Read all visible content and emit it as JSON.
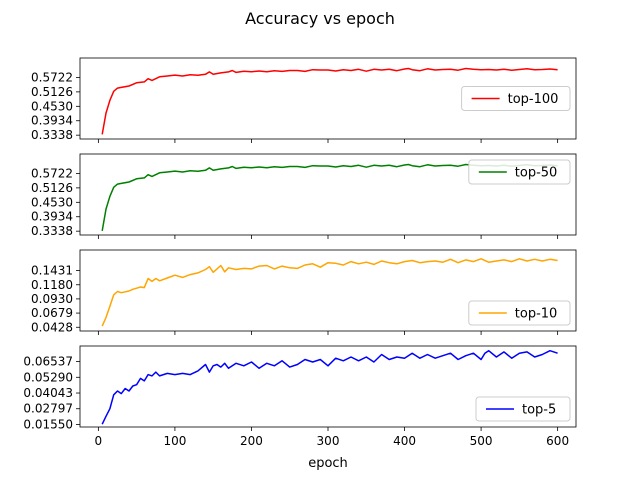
{
  "figure": {
    "title": "Accuracy vs epoch",
    "xlabel": "epoch"
  },
  "chart_data": [
    {
      "type": "line",
      "legend": "top-100",
      "legend_loc": "center-right",
      "color": "#ff0000",
      "yticks": [
        "0.3338",
        "0.3934",
        "0.4530",
        "0.5126",
        "0.5722"
      ],
      "ylim": [
        0.318,
        0.6525
      ],
      "xlim": [
        -24,
        624
      ],
      "xticks": [
        0,
        100,
        200,
        300,
        400,
        500,
        600
      ],
      "x": [
        5,
        10,
        15,
        20,
        25,
        30,
        40,
        50,
        60,
        65,
        70,
        80,
        90,
        100,
        110,
        120,
        130,
        140,
        145,
        150,
        160,
        170,
        175,
        180,
        190,
        200,
        210,
        220,
        230,
        240,
        250,
        260,
        270,
        280,
        290,
        300,
        310,
        320,
        330,
        340,
        350,
        360,
        370,
        380,
        390,
        400,
        405,
        410,
        420,
        430,
        440,
        450,
        460,
        470,
        480,
        490,
        500,
        510,
        520,
        530,
        540,
        550,
        560,
        570,
        580,
        590,
        600
      ],
      "y": [
        0.337,
        0.425,
        0.478,
        0.515,
        0.528,
        0.531,
        0.537,
        0.55,
        0.554,
        0.567,
        0.56,
        0.575,
        0.578,
        0.582,
        0.578,
        0.583,
        0.581,
        0.585,
        0.595,
        0.585,
        0.591,
        0.595,
        0.601,
        0.593,
        0.598,
        0.596,
        0.599,
        0.596,
        0.6,
        0.597,
        0.601,
        0.601,
        0.597,
        0.604,
        0.603,
        0.603,
        0.599,
        0.604,
        0.601,
        0.606,
        0.598,
        0.606,
        0.603,
        0.606,
        0.6,
        0.607,
        0.609,
        0.604,
        0.6,
        0.608,
        0.603,
        0.605,
        0.606,
        0.602,
        0.609,
        0.606,
        0.604,
        0.605,
        0.603,
        0.606,
        0.602,
        0.605,
        0.608,
        0.604,
        0.605,
        0.607,
        0.604
      ]
    },
    {
      "type": "line",
      "legend": "top-50",
      "legend_loc": "upper-right",
      "color": "#008000",
      "yticks": [
        "0.3338",
        "0.3934",
        "0.4530",
        "0.5126",
        "0.5722"
      ],
      "ylim": [
        0.318,
        0.6525
      ],
      "xlim": [
        -24,
        624
      ],
      "xticks": [
        0,
        100,
        200,
        300,
        400,
        500,
        600
      ],
      "x": [
        5,
        10,
        15,
        20,
        25,
        30,
        40,
        50,
        60,
        65,
        70,
        80,
        90,
        100,
        110,
        120,
        130,
        140,
        145,
        150,
        160,
        170,
        175,
        180,
        190,
        200,
        210,
        220,
        230,
        240,
        250,
        260,
        270,
        280,
        290,
        300,
        310,
        320,
        330,
        340,
        350,
        360,
        370,
        380,
        390,
        400,
        405,
        410,
        420,
        430,
        440,
        450,
        460,
        470,
        480,
        490,
        500,
        510,
        520,
        530,
        540,
        550,
        560,
        570,
        580,
        590,
        600
      ],
      "y": [
        0.335,
        0.425,
        0.478,
        0.515,
        0.528,
        0.531,
        0.537,
        0.55,
        0.554,
        0.567,
        0.56,
        0.575,
        0.578,
        0.582,
        0.578,
        0.583,
        0.581,
        0.585,
        0.595,
        0.585,
        0.591,
        0.595,
        0.601,
        0.593,
        0.598,
        0.596,
        0.599,
        0.596,
        0.6,
        0.597,
        0.601,
        0.601,
        0.597,
        0.604,
        0.603,
        0.603,
        0.599,
        0.604,
        0.601,
        0.606,
        0.598,
        0.606,
        0.603,
        0.606,
        0.6,
        0.607,
        0.609,
        0.604,
        0.6,
        0.608,
        0.603,
        0.605,
        0.606,
        0.602,
        0.609,
        0.606,
        0.604,
        0.605,
        0.603,
        0.606,
        0.602,
        0.605,
        0.608,
        0.604,
        0.605,
        0.607,
        0.604
      ]
    },
    {
      "type": "line",
      "legend": "top-10",
      "legend_loc": "lower-right",
      "color": "#ffa500",
      "yticks": [
        "0.0428",
        "0.0679",
        "0.0930",
        "0.1180",
        "0.1431"
      ],
      "ylim": [
        0.0362,
        0.1795
      ],
      "xlim": [
        -24,
        624
      ],
      "xticks": [
        0,
        100,
        200,
        300,
        400,
        500,
        600
      ],
      "x": [
        5,
        10,
        15,
        20,
        25,
        30,
        40,
        45,
        50,
        55,
        60,
        65,
        70,
        75,
        80,
        90,
        100,
        110,
        120,
        130,
        140,
        145,
        150,
        155,
        160,
        165,
        170,
        180,
        190,
        200,
        210,
        220,
        230,
        240,
        250,
        260,
        270,
        280,
        290,
        300,
        310,
        320,
        330,
        340,
        350,
        360,
        370,
        380,
        390,
        400,
        410,
        420,
        430,
        440,
        450,
        460,
        470,
        480,
        490,
        500,
        510,
        520,
        530,
        540,
        550,
        560,
        570,
        580,
        590,
        600
      ],
      "y": [
        0.0448,
        0.06,
        0.08,
        0.1,
        0.106,
        0.104,
        0.107,
        0.11,
        0.112,
        0.114,
        0.113,
        0.129,
        0.124,
        0.129,
        0.125,
        0.13,
        0.135,
        0.131,
        0.136,
        0.139,
        0.145,
        0.15,
        0.14,
        0.146,
        0.152,
        0.141,
        0.148,
        0.145,
        0.147,
        0.146,
        0.151,
        0.152,
        0.146,
        0.151,
        0.148,
        0.147,
        0.153,
        0.155,
        0.149,
        0.157,
        0.156,
        0.153,
        0.159,
        0.155,
        0.158,
        0.154,
        0.16,
        0.157,
        0.155,
        0.159,
        0.161,
        0.157,
        0.159,
        0.16,
        0.158,
        0.163,
        0.157,
        0.162,
        0.159,
        0.164,
        0.158,
        0.16,
        0.162,
        0.159,
        0.164,
        0.16,
        0.163,
        0.16,
        0.163,
        0.161
      ]
    },
    {
      "type": "line",
      "legend": "top-5",
      "legend_loc": "lower-right",
      "color": "#0000ff",
      "yticks": [
        "0.01550",
        "0.02797",
        "0.04043",
        "0.05290",
        "0.06537"
      ],
      "ylim": [
        0.0135,
        0.0777
      ],
      "xlim": [
        -24,
        624
      ],
      "xticks": [
        0,
        100,
        200,
        300,
        400,
        500,
        600
      ],
      "x": [
        5,
        10,
        15,
        20,
        25,
        30,
        35,
        40,
        45,
        50,
        55,
        60,
        65,
        70,
        75,
        80,
        90,
        100,
        110,
        120,
        130,
        140,
        145,
        150,
        155,
        160,
        165,
        170,
        180,
        190,
        200,
        210,
        220,
        230,
        240,
        250,
        260,
        270,
        280,
        290,
        300,
        310,
        320,
        330,
        340,
        350,
        360,
        370,
        380,
        390,
        400,
        410,
        420,
        430,
        440,
        450,
        460,
        470,
        480,
        490,
        500,
        505,
        510,
        520,
        530,
        540,
        550,
        560,
        570,
        580,
        590,
        600
      ],
      "y": [
        0.0157,
        0.022,
        0.028,
        0.039,
        0.042,
        0.04,
        0.044,
        0.042,
        0.046,
        0.047,
        0.052,
        0.05,
        0.055,
        0.054,
        0.057,
        0.054,
        0.056,
        0.055,
        0.056,
        0.055,
        0.058,
        0.063,
        0.057,
        0.062,
        0.063,
        0.061,
        0.064,
        0.06,
        0.064,
        0.062,
        0.065,
        0.06,
        0.064,
        0.062,
        0.066,
        0.061,
        0.063,
        0.067,
        0.065,
        0.067,
        0.062,
        0.068,
        0.066,
        0.069,
        0.066,
        0.069,
        0.065,
        0.071,
        0.067,
        0.069,
        0.068,
        0.072,
        0.068,
        0.071,
        0.068,
        0.07,
        0.072,
        0.067,
        0.07,
        0.072,
        0.067,
        0.072,
        0.074,
        0.069,
        0.073,
        0.068,
        0.072,
        0.073,
        0.069,
        0.071,
        0.074,
        0.072
      ]
    }
  ]
}
